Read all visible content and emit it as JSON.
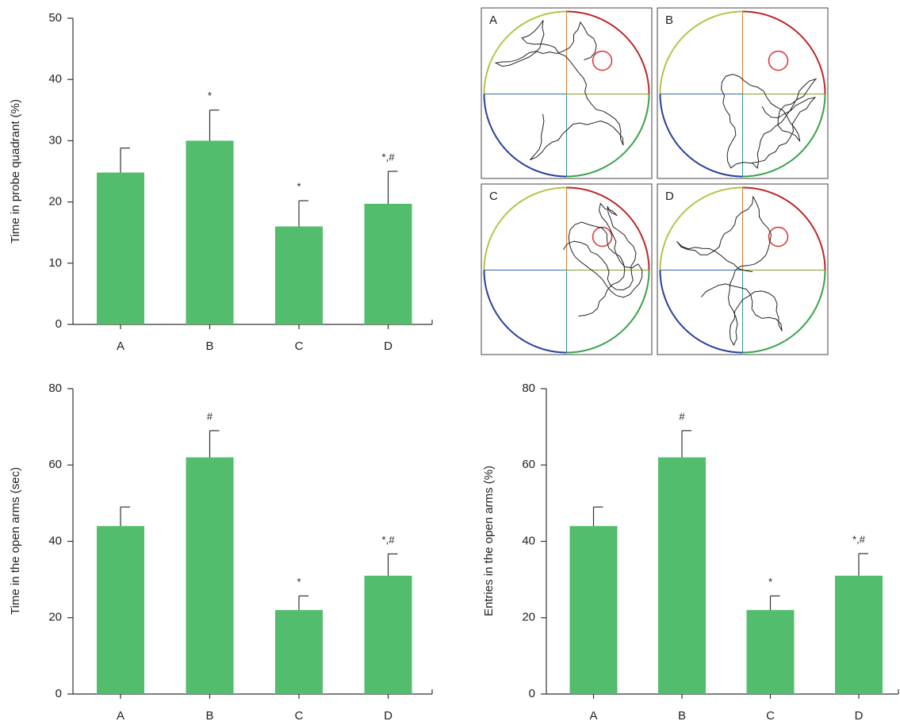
{
  "chart_data": [
    {
      "type": "bar",
      "ylabel": "Time in probe quadrant (%)",
      "categories": [
        "A",
        "B",
        "C",
        "D"
      ],
      "values": [
        24.8,
        30,
        16,
        19.7
      ],
      "errors": [
        4,
        5,
        4.2,
        5.3
      ],
      "annotations": [
        null,
        "*",
        "*",
        "*,#"
      ],
      "color": "#52bd6d",
      "ylim": [
        0,
        50
      ],
      "yticks": [
        0,
        10,
        20,
        30,
        40,
        50
      ]
    },
    {
      "type": "bar",
      "ylabel": "Time in the open arms (sec)",
      "categories": [
        "A",
        "B",
        "C",
        "D"
      ],
      "values": [
        44,
        62,
        22,
        31
      ],
      "errors": [
        5,
        7,
        3.7,
        5.7
      ],
      "annotations": [
        null,
        "#",
        "*",
        "*,#"
      ],
      "color": "#52bd6d",
      "ylim": [
        0,
        80
      ],
      "yticks": [
        0,
        20,
        40,
        60,
        80
      ]
    },
    {
      "type": "bar",
      "ylabel": "Entries in the open arms (%)",
      "categories": [
        "A",
        "B",
        "C",
        "D"
      ],
      "values": [
        44,
        62,
        22,
        31
      ],
      "errors": [
        5,
        7,
        3.7,
        5.8
      ],
      "annotations": [
        null,
        "#",
        "*",
        "*,#"
      ],
      "color": "#52bd6d",
      "ylim": [
        0,
        80
      ],
      "yticks": [
        0,
        20,
        40,
        60,
        80
      ]
    }
  ],
  "track_panels": [
    "A",
    "B",
    "C",
    "D"
  ]
}
